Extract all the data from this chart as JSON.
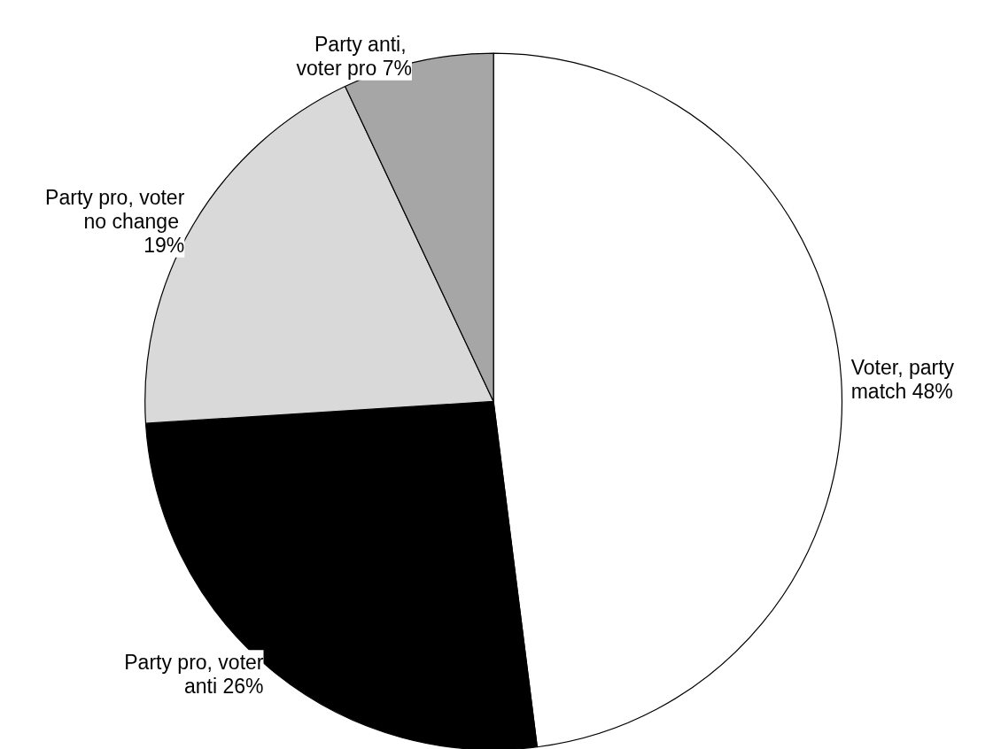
{
  "chart_data": {
    "type": "pie",
    "categories": [
      "Voter, party match",
      "Party pro, voter anti",
      "Party pro, voter no change",
      "Party anti, voter pro"
    ],
    "values": [
      48,
      26,
      19,
      7
    ],
    "colors": [
      "#ffffff",
      "#000000",
      "#d9d9d9",
      "#a6a6a6"
    ],
    "value_labels": [
      "48%",
      "26%",
      "19%",
      "7%"
    ],
    "legend": false
  }
}
